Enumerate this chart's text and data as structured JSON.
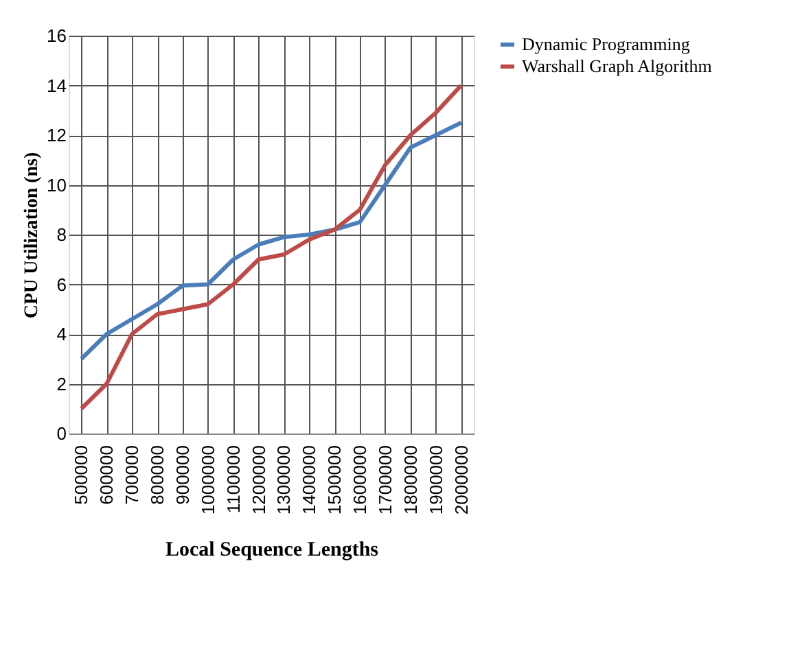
{
  "chart_data": {
    "type": "line",
    "xlabel": "Local Sequence Lengths",
    "ylabel": "CPU Utilization (ns)",
    "categories": [
      "500000",
      "600000",
      "700000",
      "800000",
      "900000",
      "1000000",
      "1100000",
      "1200000",
      "1300000",
      "1400000",
      "1500000",
      "1600000",
      "1700000",
      "1800000",
      "1900000",
      "2000000"
    ],
    "series": [
      {
        "name": "Dynamic Programming",
        "color": "#4a7ebb",
        "values": [
          3,
          4,
          4.6,
          5.2,
          5.95,
          6,
          7,
          7.6,
          7.9,
          8,
          8.2,
          8.5,
          10,
          11.5,
          12,
          12.5
        ]
      },
      {
        "name": "Warshall Graph Algorithm",
        "color": "#be4b48",
        "values": [
          1,
          2,
          4,
          4.8,
          5,
          5.2,
          6,
          7,
          7.2,
          7.8,
          8.2,
          9,
          10.8,
          12,
          12.9,
          14
        ]
      }
    ],
    "ylim": [
      0,
      16
    ],
    "yticks": [
      0,
      2,
      4,
      6,
      8,
      10,
      12,
      14,
      16
    ],
    "grid": true,
    "legend": "right",
    "marker": "none",
    "line_style": "solid"
  }
}
